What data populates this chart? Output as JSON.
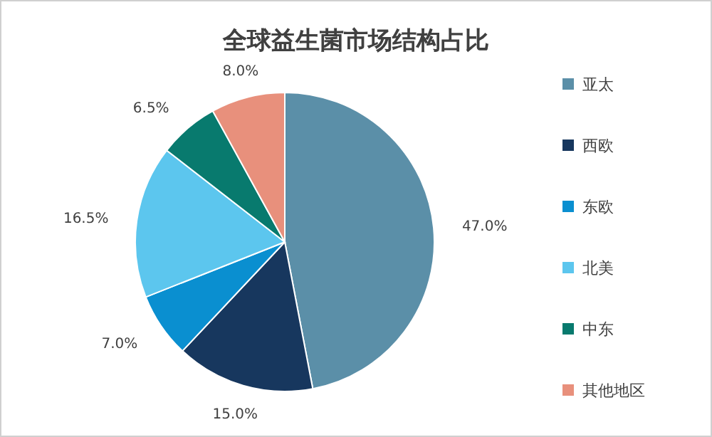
{
  "chart_data": {
    "type": "pie",
    "title": "全球益生菌市场结构占比",
    "categories": [
      "亚太",
      "西欧",
      "东欧",
      "北美",
      "中东",
      "其他地区"
    ],
    "values": [
      47.0,
      15.0,
      7.0,
      16.5,
      6.5,
      8.0
    ],
    "colors": [
      "#5b8fa8",
      "#17375e",
      "#0a8fd0",
      "#5cc6ee",
      "#087a6e",
      "#e8907c"
    ],
    "value_labels": [
      "47.0%",
      "15.0%",
      "7.0%",
      "16.5%",
      "6.5%",
      "8.0%"
    ],
    "legend": "right"
  }
}
